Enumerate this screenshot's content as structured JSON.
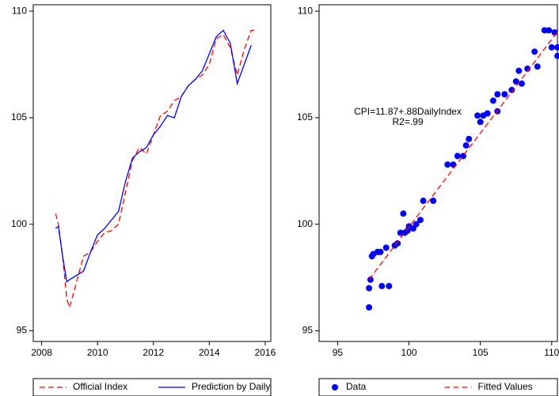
{
  "chart_data": [
    {
      "type": "line",
      "x": [
        2008.5,
        2008.6,
        2008.75,
        2008.9,
        2009.0,
        2009.25,
        2009.5,
        2009.75,
        2010.0,
        2010.25,
        2010.5,
        2010.75,
        2011.0,
        2011.25,
        2011.5,
        2011.75,
        2012.0,
        2012.25,
        2012.5,
        2012.75,
        2013.0,
        2013.25,
        2013.5,
        2013.75,
        2014.0,
        2014.25,
        2014.5,
        2014.75,
        2015.0,
        2015.25,
        2015.5,
        2015.6
      ],
      "series": [
        {
          "name": "Official Index",
          "color": "#ff0000",
          "dash": true,
          "values": [
            100.5,
            100,
            98.5,
            96.5,
            96.1,
            97.3,
            98.5,
            98.7,
            99.2,
            99.6,
            99.7,
            100,
            101.5,
            103,
            103.6,
            103.3,
            104.2,
            105.1,
            105.3,
            105.8,
            106,
            106.5,
            106.8,
            107,
            107.5,
            108.7,
            108.9,
            108.3,
            107,
            108.2,
            109.1,
            109.1
          ]
        },
        {
          "name": "Prediction by Daily",
          "color": "#0000ff",
          "dash": false,
          "values": [
            99.8,
            99.9,
            98.5,
            97.3,
            97.4,
            97.6,
            97.8,
            98.7,
            99.5,
            99.8,
            100.2,
            100.6,
            102,
            103.1,
            103.4,
            103.6,
            104.2,
            104.6,
            105.1,
            105,
            106,
            106.5,
            106.8,
            107.2,
            108,
            108.8,
            109.1,
            108.5,
            106.6,
            107.5,
            108.4,
            null
          ]
        }
      ],
      "xlim": [
        2007.7,
        2016.2
      ],
      "xticks": [
        2008,
        2010,
        2012,
        2014,
        2016
      ],
      "ylim": [
        94.5,
        110.3
      ],
      "yticks": [
        95,
        100,
        105,
        110
      ],
      "legend": "bottom"
    },
    {
      "type": "scatter",
      "series": [
        {
          "name": "Data",
          "type": "scatter",
          "color": "#0000ff",
          "x": [
            97.2,
            97.2,
            97.3,
            97.4,
            97.5,
            97.8,
            98.0,
            98.1,
            98.4,
            98.6,
            99.0,
            99.2,
            99.4,
            99.6,
            99.7,
            99.9,
            100.0,
            100.3,
            100.5,
            100.8,
            101.0,
            101.7,
            102.7,
            103.1,
            103.4,
            103.8,
            104.0,
            104.2,
            104.8,
            105.0,
            105.2,
            105.5,
            105.9,
            106.2,
            106.2,
            106.7,
            107.2,
            107.5,
            107.7,
            107.9,
            108.3,
            108.8,
            109.0,
            109.5,
            109.8,
            110.0,
            110.2,
            110.4,
            110.4
          ],
          "values": [
            96.1,
            97.0,
            97.4,
            98.5,
            98.6,
            98.7,
            98.7,
            97.1,
            98.9,
            97.1,
            99.0,
            99.1,
            99.6,
            100.5,
            99.6,
            99.7,
            99.9,
            99.8,
            100.0,
            100.2,
            101.1,
            101.1,
            102.8,
            102.8,
            103.2,
            103.2,
            103.7,
            104.0,
            105.1,
            104.8,
            105.1,
            105.2,
            105.8,
            106.1,
            105.3,
            106.1,
            106.3,
            106.7,
            107.2,
            106.6,
            107.3,
            108.1,
            107.4,
            109.1,
            109.1,
            108.3,
            109.0,
            108.3,
            107.9
          ]
        },
        {
          "name": "Fitted Values",
          "type": "line",
          "color": "#ff0000",
          "dash": true,
          "x": [
            97.2,
            110.6
          ],
          "values": [
            97.41,
            109.2
          ]
        }
      ],
      "annotations": [
        "CPI=11.87+.88DailyIndex",
        "R2=.99"
      ],
      "xlim": [
        93.7,
        110.4
      ],
      "xticks": [
        95,
        100,
        105,
        110
      ],
      "ylim": [
        94.5,
        110.3
      ],
      "yticks": [
        95,
        100,
        105,
        110
      ],
      "legend": "bottom"
    }
  ]
}
